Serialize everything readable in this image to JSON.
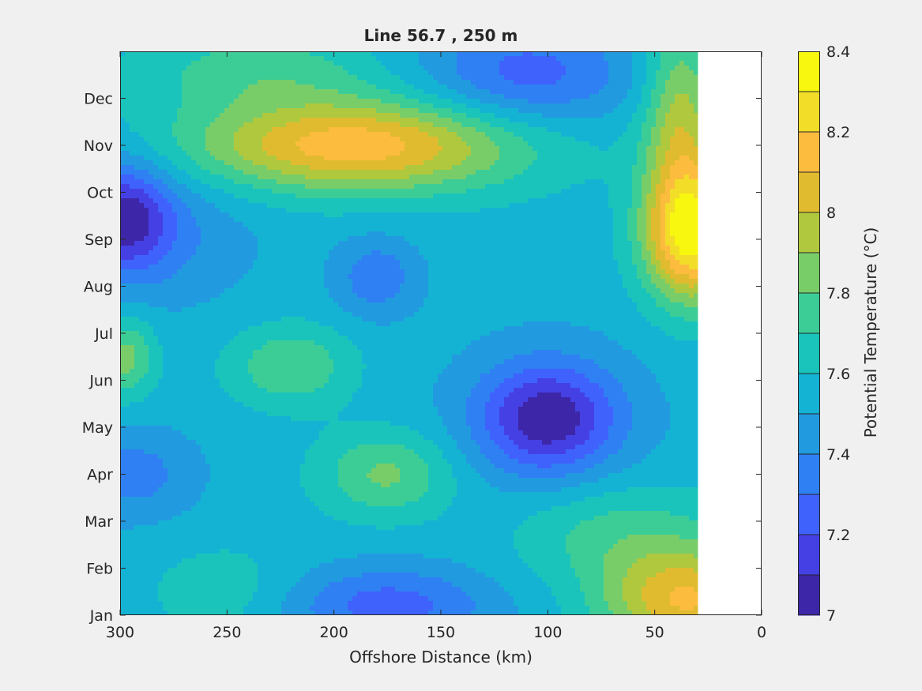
{
  "chart_data": {
    "type": "heatmap",
    "subtype": "filled-contour",
    "title": "Line 56.7 , 250 m",
    "xlabel": "Offshore Distance (km)",
    "ylabel": "",
    "x_direction": "reversed",
    "xlim": [
      300,
      0
    ],
    "ylim": [
      1,
      13
    ],
    "x_ticks": [
      {
        "value": 300,
        "label": "300"
      },
      {
        "value": 250,
        "label": "250"
      },
      {
        "value": 200,
        "label": "200"
      },
      {
        "value": 150,
        "label": "150"
      },
      {
        "value": 100,
        "label": "100"
      },
      {
        "value": 50,
        "label": "50"
      },
      {
        "value": 0,
        "label": "0"
      }
    ],
    "y_ticks": [
      {
        "value": 1,
        "label": "Jan"
      },
      {
        "value": 2,
        "label": "Feb"
      },
      {
        "value": 3,
        "label": "Mar"
      },
      {
        "value": 4,
        "label": "Apr"
      },
      {
        "value": 5,
        "label": "May"
      },
      {
        "value": 6,
        "label": "Jun"
      },
      {
        "value": 7,
        "label": "Jul"
      },
      {
        "value": 8,
        "label": "Aug"
      },
      {
        "value": 9,
        "label": "Sep"
      },
      {
        "value": 10,
        "label": "Oct"
      },
      {
        "value": 11,
        "label": "Nov"
      },
      {
        "value": 12,
        "label": "Dec"
      }
    ],
    "data_extent_x_min": 30,
    "colorbar": {
      "label": "Potential Temperature (°C)",
      "range": [
        7,
        8.4
      ],
      "level_step": 0.1,
      "tick_values": [
        7,
        7.2,
        7.4,
        7.6,
        7.8,
        8,
        8.2,
        8.4
      ],
      "tick_labels": [
        "7",
        "7.2",
        "7.4",
        "7.6",
        "7.8",
        "8",
        "8.2",
        "8.4"
      ],
      "colors": [
        "#3e26a8",
        "#4540e4",
        "#3f62fd",
        "#2f80f2",
        "#229ae0",
        "#14b3d4",
        "#1ac4bb",
        "#3ccd97",
        "#78cd69",
        "#b0c83d",
        "#e1bb2f",
        "#fcbc3e",
        "#f2dd28",
        "#f7f70f"
      ]
    },
    "field_description": "Potential temperature at 250 m depth by offshore distance and month",
    "base_value": 7.55,
    "features": [
      {
        "x": 298,
        "y": 9.5,
        "amp": -0.42,
        "sx": 16,
        "sy": 0.8
      },
      {
        "x": 285,
        "y": 9.1,
        "amp": -0.15,
        "sx": 35,
        "sy": 1.1
      },
      {
        "x": 100,
        "y": 5.2,
        "amp": -0.45,
        "sx": 22,
        "sy": 0.8
      },
      {
        "x": 100,
        "y": 5.0,
        "amp": -0.1,
        "sx": 40,
        "sy": 1.5
      },
      {
        "x": 175,
        "y": 1.2,
        "amp": -0.3,
        "sx": 35,
        "sy": 0.6
      },
      {
        "x": 110,
        "y": 12.5,
        "amp": -0.3,
        "sx": 35,
        "sy": 0.8
      },
      {
        "x": 180,
        "y": 8.2,
        "amp": -0.22,
        "sx": 14,
        "sy": 0.6
      },
      {
        "x": 295,
        "y": 4.0,
        "amp": -0.2,
        "sx": 22,
        "sy": 0.7
      },
      {
        "x": 190,
        "y": 11.0,
        "amp": 0.62,
        "sx": 55,
        "sy": 0.7
      },
      {
        "x": 235,
        "y": 12.6,
        "amp": 0.2,
        "sx": 40,
        "sy": 0.6
      },
      {
        "x": 32,
        "y": 9.1,
        "amp": 0.78,
        "sx": 16,
        "sy": 1.0
      },
      {
        "x": 38,
        "y": 11.5,
        "amp": 0.4,
        "sx": 12,
        "sy": 1.5
      },
      {
        "x": 35,
        "y": 1.3,
        "amp": 0.55,
        "sx": 28,
        "sy": 0.8
      },
      {
        "x": 70,
        "y": 2.8,
        "amp": 0.2,
        "sx": 35,
        "sy": 0.8
      },
      {
        "x": 220,
        "y": 6.3,
        "amp": 0.25,
        "sx": 20,
        "sy": 0.6
      },
      {
        "x": 175,
        "y": 4.0,
        "amp": 0.28,
        "sx": 22,
        "sy": 0.65
      },
      {
        "x": 298,
        "y": 6.5,
        "amp": 0.3,
        "sx": 10,
        "sy": 0.6
      },
      {
        "x": 250,
        "y": 1.5,
        "amp": 0.12,
        "sx": 25,
        "sy": 0.7
      }
    ]
  }
}
